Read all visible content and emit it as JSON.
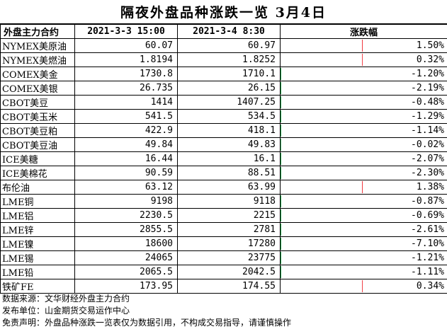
{
  "title": "隔夜外盘品种涨跌一览 3月4日",
  "headers": {
    "name": "外盘主力合约",
    "prev": "2021-3-3 15:00",
    "curr": "2021-3-4 8:30",
    "change": "涨跌幅"
  },
  "rows": [
    {
      "name": "NYMEX美原油",
      "prev": "60.07",
      "curr": "60.97",
      "pct": "1.50%",
      "value": 1.5
    },
    {
      "name": "NYMEX美燃油",
      "prev": "1.8194",
      "curr": "1.8252",
      "pct": "0.32%",
      "value": 0.32
    },
    {
      "name": "COMEX美金",
      "prev": "1730.8",
      "curr": "1710.1",
      "pct": "-1.20%",
      "value": -1.2
    },
    {
      "name": "COMEX美银",
      "prev": "26.735",
      "curr": "26.15",
      "pct": "-2.19%",
      "value": -2.19
    },
    {
      "name": "CBOT美豆",
      "prev": "1414",
      "curr": "1407.25",
      "pct": "-0.48%",
      "value": -0.48
    },
    {
      "name": "CBOT美玉米",
      "prev": "541.5",
      "curr": "534.5",
      "pct": "-1.29%",
      "value": -1.29
    },
    {
      "name": "CBOT美豆粕",
      "prev": "422.9",
      "curr": "418.1",
      "pct": "-1.14%",
      "value": -1.14
    },
    {
      "name": "CBOT美豆油",
      "prev": "49.84",
      "curr": "49.83",
      "pct": "-0.02%",
      "value": -0.02
    },
    {
      "name": "ICE美糖",
      "prev": "16.44",
      "curr": "16.1",
      "pct": "-2.07%",
      "value": -2.07
    },
    {
      "name": "ICE美棉花",
      "prev": "90.59",
      "curr": "88.51",
      "pct": "-2.30%",
      "value": -2.3
    },
    {
      "name": "布伦油",
      "prev": "63.12",
      "curr": "63.99",
      "pct": "1.38%",
      "value": 1.38
    },
    {
      "name": "LME铜",
      "prev": "9198",
      "curr": "9118",
      "pct": "-0.87%",
      "value": -0.87
    },
    {
      "name": "LME铝",
      "prev": "2230.5",
      "curr": "2215",
      "pct": "-0.69%",
      "value": -0.69
    },
    {
      "name": "LME锌",
      "prev": "2855.5",
      "curr": "2781",
      "pct": "-2.61%",
      "value": -2.61
    },
    {
      "name": "LME镍",
      "prev": "18600",
      "curr": "17280",
      "pct": "-7.10%",
      "value": -7.1
    },
    {
      "name": "LME锡",
      "prev": "24065",
      "curr": "23775",
      "pct": "-1.21%",
      "value": -1.21
    },
    {
      "name": "LME铅",
      "prev": "2065.5",
      "curr": "2042.5",
      "pct": "-1.11%",
      "value": -1.11
    },
    {
      "name": "铁矿FE",
      "prev": "173.95",
      "curr": "174.55",
      "pct": "0.34%",
      "value": 0.34
    }
  ],
  "footer": {
    "source": "数据来源：文华财经外盘主力合约",
    "publisher": "发布单位：山金期货交易运作中心",
    "disclaimer": "免责声明：外盘品种涨跌一览表仅为数据引用，不构成交易指导，请谨慎操作"
  },
  "colors": {
    "up": "#f0353c",
    "down": "#1aa546"
  }
}
